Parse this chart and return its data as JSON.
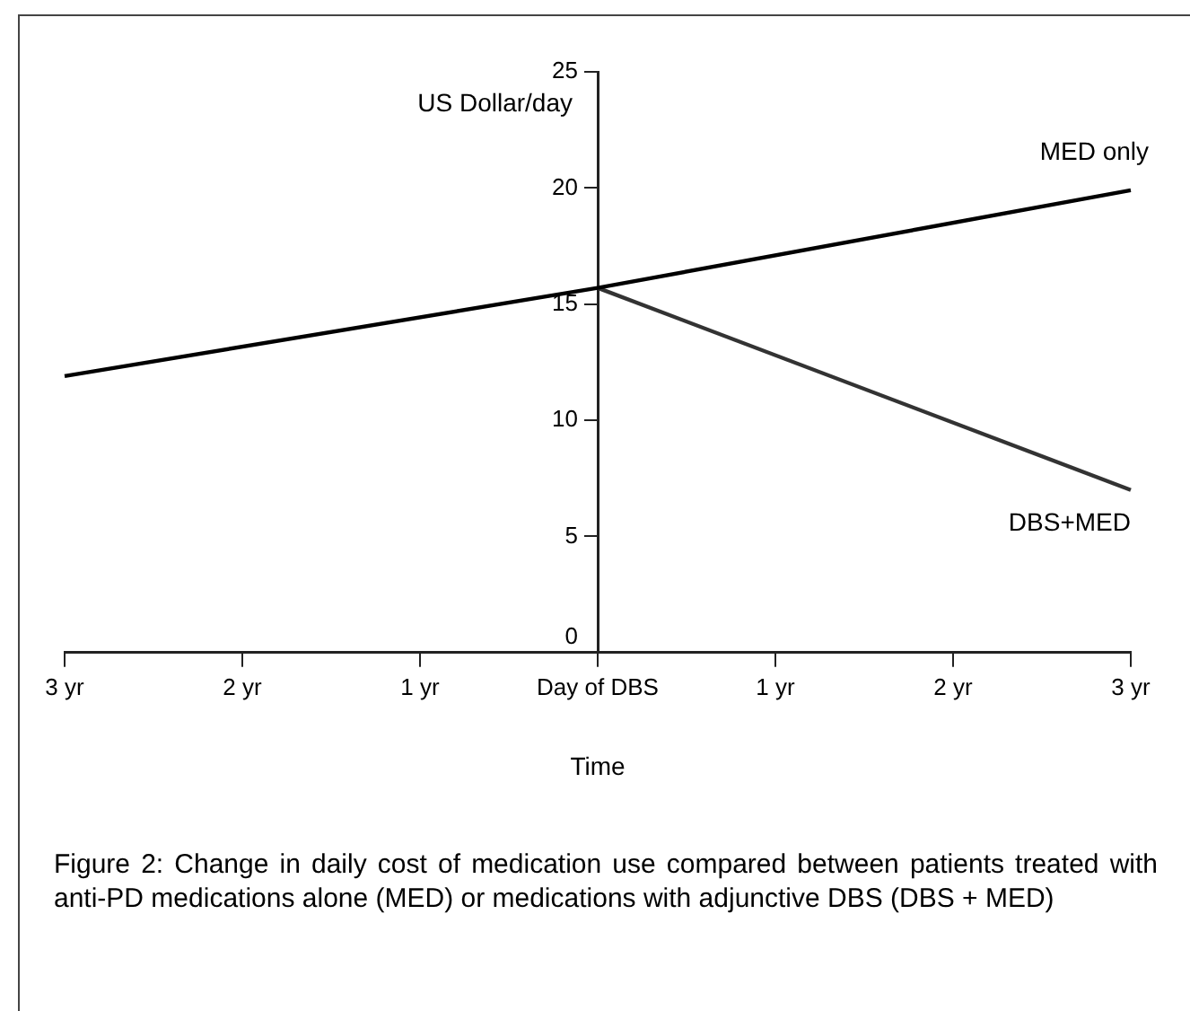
{
  "chart_data": {
    "type": "line",
    "xlabel": "Time",
    "ylabel": "US Dollar/day",
    "categories": [
      "3 yr",
      "2 yr",
      "1 yr",
      "Day of DBS",
      "1 yr",
      "2 yr",
      "3 yr"
    ],
    "series": [
      {
        "name": "MED only",
        "color": "#000000",
        "values": [
          11.9,
          null,
          null,
          15.7,
          null,
          null,
          19.9
        ]
      },
      {
        "name": "DBS+MED",
        "color": "#333333",
        "values": [
          null,
          null,
          null,
          15.7,
          null,
          null,
          7.0
        ]
      }
    ],
    "ylim": [
      0,
      25
    ],
    "yticks": [
      0,
      5,
      10,
      15,
      20,
      25
    ],
    "grid": false,
    "legend": false,
    "marker": "none",
    "annotations": [
      "Figure 2: Change in daily cost of medication use compared between patients treated with anti-PD medications alone (MED) or medications with adjunctive DBS (DBS + MED)"
    ]
  }
}
